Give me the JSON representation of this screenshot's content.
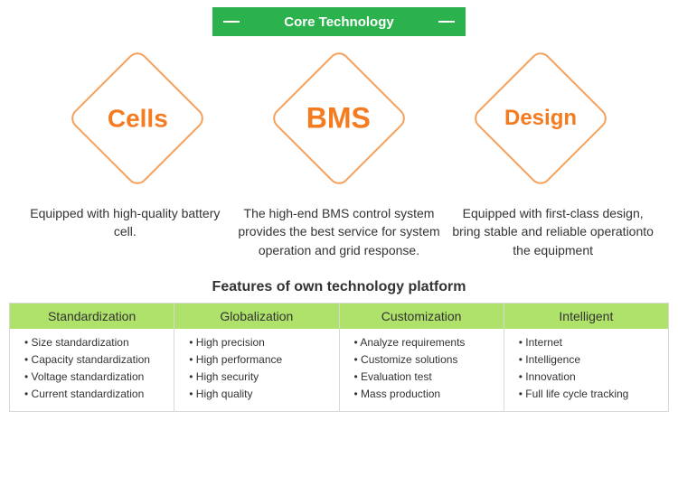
{
  "header": {
    "title": "Core Technology",
    "bg_color": "#2bb24c",
    "text_color": "#ffffff"
  },
  "accent_color": "#f47b20",
  "diamond_border_color": "#f5a05a",
  "cards": [
    {
      "label": "Cells",
      "font_size": 28,
      "desc": "Equipped with high-quality battery cell."
    },
    {
      "label": "BMS",
      "font_size": 32,
      "desc": "The high-end BMS control system provides the best service for system operation and grid response."
    },
    {
      "label": "Design",
      "font_size": 24,
      "desc": "Equipped with first-class design, bring stable and reliable operationto the equipment"
    }
  ],
  "features": {
    "title": "Features of own technology platform",
    "head_bg": "#aee26a",
    "border_color": "#d8d8d8",
    "columns": [
      {
        "head": "Standardization",
        "items": [
          "Size standardization",
          "Capacity standardization",
          "Voltage standardization",
          "Current standardization"
        ]
      },
      {
        "head": "Globalization",
        "items": [
          "High precision",
          "High performance",
          "High security",
          "High quality"
        ]
      },
      {
        "head": "Customization",
        "items": [
          "Analyze requirements",
          "Customize  solutions",
          "Evaluation test",
          "Mass production"
        ]
      },
      {
        "head": "Intelligent",
        "items": [
          "Internet",
          "Intelligence",
          "Innovation",
          "Full life cycle tracking"
        ]
      }
    ]
  }
}
